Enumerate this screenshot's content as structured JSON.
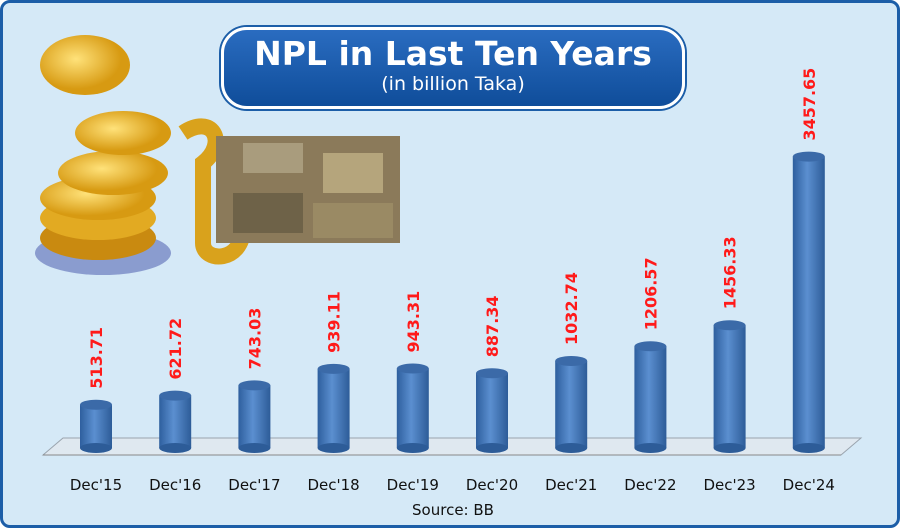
{
  "chart_data": {
    "type": "bar",
    "title": "NPL  in Last Ten Years",
    "subtitle": "(in billion Taka)",
    "categories": [
      "Dec'15",
      "Dec'16",
      "Dec'17",
      "Dec'18",
      "Dec'19",
      "Dec'20",
      "Dec'21",
      "Dec'22",
      "Dec'23",
      "Dec'24"
    ],
    "values": [
      513.71,
      621.72,
      743.03,
      939.11,
      943.31,
      887.34,
      1032.74,
      1206.57,
      1456.33,
      3457.65
    ],
    "value_labels": [
      "513.71",
      "621.72",
      "743.03",
      "939.11",
      "943.31",
      "887.34",
      "1032.74",
      "1206.57",
      "1456.33",
      "3457.65"
    ],
    "xlabel": "",
    "ylabel": "",
    "ylim": [
      0,
      3500
    ],
    "grid": false,
    "source": "Source: BB",
    "colors": {
      "bar": "#3f74b8",
      "label": "#ff1a1a",
      "title_bg": "#1a5aa8"
    }
  }
}
